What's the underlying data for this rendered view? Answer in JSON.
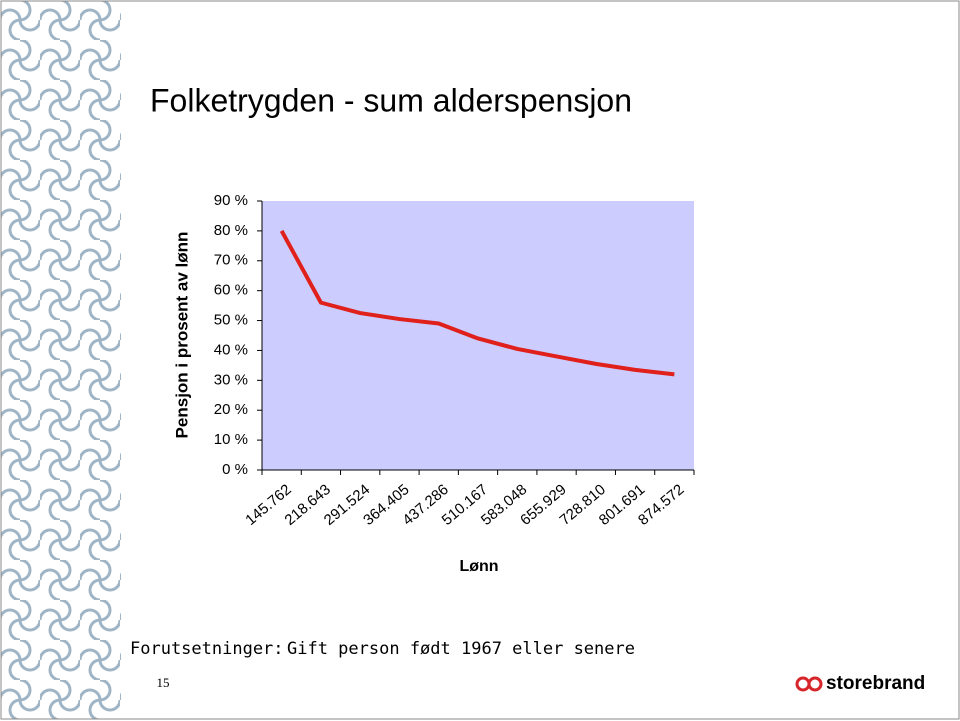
{
  "chart_data": {
    "type": "line",
    "title": "Folketrygden - sum alderspensjon",
    "y_label": "Pensjon i prosent av lønn",
    "x_label": "Lønn",
    "categories": [
      "145.762",
      "218.643",
      "291.524",
      "364.405",
      "437.286",
      "510.167",
      "583.048",
      "655.929",
      "728.810",
      "801.691",
      "874.572"
    ],
    "values": [
      80,
      56,
      52.5,
      50.5,
      49,
      44,
      40.5,
      38,
      35.5,
      33.5,
      32
    ],
    "color": "#e0201b",
    "plot_background": "#ccccff",
    "ylim": [
      0,
      90
    ],
    "yticks": [
      {
        "value": 0,
        "label": "0 %"
      },
      {
        "value": 10,
        "label": "10 %"
      },
      {
        "value": 20,
        "label": "20 %"
      },
      {
        "value": 30,
        "label": "30 %"
      },
      {
        "value": 40,
        "label": "40 %"
      },
      {
        "value": 50,
        "label": "50 %"
      },
      {
        "value": 60,
        "label": "60 %"
      },
      {
        "value": 70,
        "label": "70 %"
      },
      {
        "value": 80,
        "label": "80 %"
      },
      {
        "value": 90,
        "label": "90 %"
      }
    ]
  },
  "slide": {
    "footer_label": "Forutsetninger:",
    "footer_text": "Gift person født 1967 eller senere",
    "page_number": "15",
    "logo": "storebrand"
  }
}
